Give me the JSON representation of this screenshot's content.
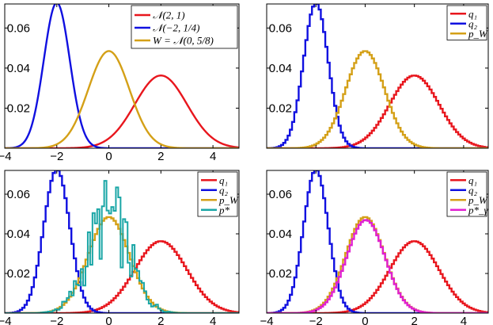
{
  "chart_data": [
    {
      "type": "line",
      "title": "",
      "xlabel": "",
      "ylabel": "",
      "xlim": [
        -4,
        5
      ],
      "ylim": [
        0,
        0.072
      ],
      "xticks": [
        -4,
        -2,
        0,
        2,
        4
      ],
      "yticks": [
        0.02,
        0.04,
        0.06
      ],
      "xticklabels": [
        "−4",
        "−2",
        "0",
        "2",
        "4"
      ],
      "yticklabels": [
        "0.02",
        "0.04",
        "0.06"
      ],
      "grid": false,
      "legend_position": "top-right",
      "style": "smooth",
      "series": [
        {
          "name": "𝒩(2, 1)",
          "mu": 2,
          "var": 1,
          "peak": 0.0363,
          "color": "#e8161d"
        },
        {
          "name": "𝒩(−2, 1/4)",
          "mu": -2,
          "var": 0.25,
          "peak": 0.0726,
          "color": "#1010e0"
        },
        {
          "name": "W = 𝒩(0, 5/8)",
          "mu": 0,
          "var": 0.625,
          "peak": 0.0485,
          "color": "#d4a017"
        }
      ]
    },
    {
      "type": "line",
      "title": "",
      "xlim": [
        -4,
        5
      ],
      "ylim": [
        0,
        0.072
      ],
      "xticks": [
        -4,
        -2,
        0,
        2,
        4
      ],
      "yticks": [
        0.02,
        0.04,
        0.06
      ],
      "xticklabels": [
        "",
        "",
        "",
        "",
        ""
      ],
      "yticklabels": [
        "0.02",
        "0.04",
        "0.06"
      ],
      "legend_position": "top-right",
      "style": "step",
      "series": [
        {
          "name": "q₁",
          "mu": 2,
          "var": 1,
          "peak": 0.0363,
          "color": "#e8161d"
        },
        {
          "name": "q₂",
          "mu": -2,
          "var": 0.25,
          "peak": 0.0726,
          "color": "#1010e0"
        },
        {
          "name": "p_W",
          "mu": 0,
          "var": 0.625,
          "peak": 0.0485,
          "color": "#d4a017"
        }
      ]
    },
    {
      "type": "line",
      "title": "",
      "xlim": [
        -4,
        5
      ],
      "ylim": [
        0,
        0.072
      ],
      "xticks": [
        -4,
        -2,
        0,
        2,
        4
      ],
      "yticks": [
        0.02,
        0.04,
        0.06
      ],
      "xticklabels": [
        "−4",
        "−2",
        "0",
        "2",
        "4"
      ],
      "yticklabels": [
        "0.02",
        "0.04",
        "0.06"
      ],
      "legend_position": "top-right",
      "style": "step",
      "series": [
        {
          "name": "q₁",
          "mu": 2,
          "var": 1,
          "peak": 0.0363,
          "color": "#e8161d"
        },
        {
          "name": "q₂",
          "mu": -2,
          "var": 0.25,
          "peak": 0.0726,
          "color": "#1010e0"
        },
        {
          "name": "p_W",
          "mu": 0,
          "var": 0.625,
          "peak": 0.0485,
          "color": "#d4a017"
        },
        {
          "name": "p*",
          "mu": 0,
          "var": 0.625,
          "peak": 0.0485,
          "color": "#1aa6a6",
          "noisy": true
        }
      ]
    },
    {
      "type": "line",
      "title": "",
      "xlim": [
        -4,
        5
      ],
      "ylim": [
        0,
        0.072
      ],
      "xticks": [
        -4,
        -2,
        0,
        2,
        4
      ],
      "yticks": [
        0.02,
        0.04,
        0.06
      ],
      "xticklabels": [
        "−4",
        "−2",
        "0",
        "2",
        "4"
      ],
      "yticklabels": [
        "0.02",
        "0.04",
        "0.06"
      ],
      "legend_position": "top-right",
      "style": "step",
      "series": [
        {
          "name": "q₁",
          "mu": 2,
          "var": 1,
          "peak": 0.0363,
          "color": "#e8161d"
        },
        {
          "name": "q₂",
          "mu": -2,
          "var": 0.25,
          "peak": 0.0726,
          "color": "#1010e0"
        },
        {
          "name": "p_W",
          "mu": 0,
          "var": 0.625,
          "peak": 0.0485,
          "color": "#d4a017"
        },
        {
          "name": "p*_γ",
          "mu": 0.03,
          "var": 0.6,
          "peak": 0.047,
          "color": "#e020d0"
        }
      ]
    }
  ]
}
